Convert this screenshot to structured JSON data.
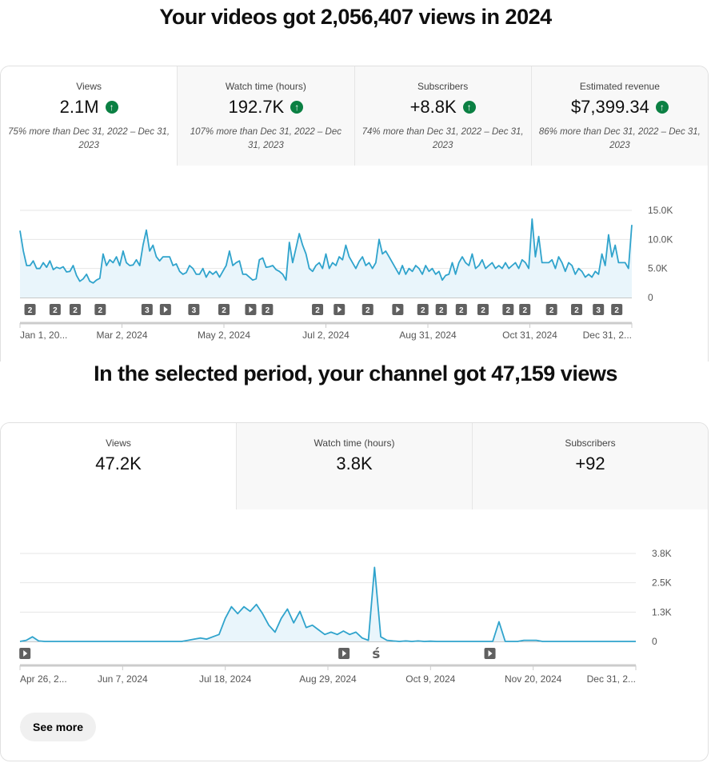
{
  "section1": {
    "title": "Your videos got 2,056,407 views in 2024",
    "tabs": [
      {
        "label": "Views",
        "value": "2.1M",
        "compare": "75% more than Dec 31, 2022 – Dec 31, 2023"
      },
      {
        "label": "Watch time (hours)",
        "value": "192.7K",
        "compare": "107% more than Dec 31, 2022 – Dec 31, 2023"
      },
      {
        "label": "Subscribers",
        "value": "+8.8K",
        "compare": "74% more than Dec 31, 2022 – Dec 31, 2023"
      },
      {
        "label": "Estimated revenue",
        "value": "$7,399.34",
        "compare": "86% more than Dec 31, 2022 – Dec 31, 2023"
      }
    ],
    "up_icon": "↑"
  },
  "section2": {
    "title": "In the selected period, your channel got 47,159 views",
    "tabs": [
      {
        "label": "Views",
        "value": "47.2K"
      },
      {
        "label": "Watch time (hours)",
        "value": "3.8K"
      },
      {
        "label": "Subscribers",
        "value": "+92"
      }
    ],
    "see_more": "See more"
  },
  "chart_data": [
    {
      "type": "area",
      "title": "Views",
      "ylabels": [
        "15.0K",
        "10.0K",
        "5.0K",
        "0"
      ],
      "ylim": [
        0,
        15000
      ],
      "xlabels": [
        "Jan 1, 20...",
        "Mar 2, 2024",
        "May 2, 2024",
        "Jul 2, 2024",
        "Aug 31, 2024",
        "Oct 31, 2024",
        "Dec 31, 2..."
      ],
      "values_k": [
        11.5,
        8,
        5.5,
        5.5,
        6.3,
        5,
        5,
        6,
        5.2,
        6.3,
        4.8,
        5.2,
        5,
        5.3,
        4.4,
        4.5,
        5.5,
        3.8,
        2.8,
        3.2,
        4,
        2.8,
        2.5,
        3,
        3.3,
        7.5,
        5.5,
        6.5,
        6,
        7,
        5.5,
        8,
        6,
        5.5,
        5.6,
        6.5,
        5.5,
        9,
        11.6,
        8,
        9,
        7,
        6.3,
        7,
        7,
        7,
        5.5,
        5.8,
        4.5,
        4,
        4.3,
        5.5,
        5,
        4,
        4,
        5,
        3.5,
        4.5,
        4,
        4.5,
        3.5,
        4.5,
        5.5,
        8,
        5.5,
        6,
        6.3,
        4,
        4,
        3.5,
        3,
        3.2,
        6.5,
        6.8,
        5.2,
        5.3,
        5.5,
        4.8,
        4.5,
        4,
        3,
        9.5,
        6,
        8.5,
        11,
        9,
        7.5,
        5,
        4.5,
        5.5,
        6,
        5,
        7.5,
        5,
        6,
        5.5,
        7,
        6.5,
        9,
        7,
        6,
        5,
        6.2,
        7,
        5.5,
        6,
        5,
        6,
        10,
        7.5,
        8,
        7,
        6,
        5,
        4,
        5.5,
        4,
        5,
        4.5,
        5.5,
        5,
        4,
        5.5,
        4.5,
        5,
        4,
        4.5,
        3,
        3.8,
        4,
        6,
        4,
        6,
        7,
        6,
        5.5,
        7.5,
        5,
        5.5,
        6.5,
        5,
        5.5,
        6,
        5,
        5.5,
        5,
        6,
        5,
        5.5,
        6,
        5,
        6.5,
        6,
        5,
        13.5,
        7,
        10.5,
        6,
        6,
        6,
        6.5,
        5,
        7,
        6,
        4.5,
        6,
        5.5,
        4,
        5,
        4.5,
        3.5,
        4,
        3.5,
        4.5,
        4,
        7.5,
        5.5,
        10.8,
        7,
        9,
        6,
        6,
        6,
        5,
        12.5
      ],
      "markers": [
        {
          "day": 6,
          "label": "2"
        },
        {
          "day": 21,
          "label": "2"
        },
        {
          "day": 33,
          "label": "2"
        },
        {
          "day": 48,
          "label": "2"
        },
        {
          "day": 76,
          "label": "3"
        },
        {
          "day": 87,
          "label": "play"
        },
        {
          "day": 104,
          "label": "3"
        },
        {
          "day": 122,
          "label": "2"
        },
        {
          "day": 138,
          "label": "play"
        },
        {
          "day": 148,
          "label": "2"
        },
        {
          "day": 178,
          "label": "2"
        },
        {
          "day": 191,
          "label": "play"
        },
        {
          "day": 208,
          "label": "2"
        },
        {
          "day": 226,
          "label": "play"
        },
        {
          "day": 241,
          "label": "2"
        },
        {
          "day": 252,
          "label": "2"
        },
        {
          "day": 264,
          "label": "2"
        },
        {
          "day": 277,
          "label": "2"
        },
        {
          "day": 292,
          "label": "2"
        },
        {
          "day": 302,
          "label": "2"
        },
        {
          "day": 318,
          "label": "2"
        },
        {
          "day": 333,
          "label": "2"
        },
        {
          "day": 346,
          "label": "3"
        },
        {
          "day": 357,
          "label": "2"
        }
      ],
      "days": 366
    },
    {
      "type": "area",
      "title": "Views",
      "ylabels": [
        "3.8K",
        "2.5K",
        "1.3K",
        "0"
      ],
      "ylim": [
        0,
        3800
      ],
      "xlabels": [
        "Apr 26, 2...",
        "Jun 7, 2024",
        "Jul 18, 2024",
        "Aug 29, 2024",
        "Oct 9, 2024",
        "Nov 20, 2024",
        "Dec 31, 2..."
      ],
      "values_k": [
        0,
        0.05,
        0.2,
        0.02,
        0,
        0,
        0,
        0,
        0,
        0,
        0,
        0,
        0,
        0,
        0,
        0,
        0,
        0,
        0,
        0,
        0,
        0,
        0,
        0,
        0,
        0,
        0,
        0.05,
        0.1,
        0.15,
        0.1,
        0.2,
        0.3,
        1,
        1.5,
        1.2,
        1.5,
        1.3,
        1.6,
        1.2,
        0.7,
        0.4,
        1,
        1.4,
        0.8,
        1.3,
        0.6,
        0.7,
        0.5,
        0.3,
        0.4,
        0.3,
        0.45,
        0.3,
        0.4,
        0.15,
        0.05,
        3.2,
        0.2,
        0.05,
        0.02,
        0,
        0.02,
        0,
        0.02,
        0,
        0.01,
        0,
        0,
        0,
        0,
        0,
        0,
        0,
        0,
        0,
        0,
        0.85,
        0,
        0,
        0,
        0.05,
        0.05,
        0.05,
        0,
        0,
        0,
        0,
        0,
        0,
        0,
        0,
        0,
        0,
        0,
        0,
        0,
        0,
        0,
        0
      ],
      "markers": [
        {
          "day": 2,
          "label": "play"
        },
        {
          "day": 131,
          "label": "play"
        },
        {
          "day": 144,
          "label": "shorts"
        },
        {
          "day": 190,
          "label": "play"
        }
      ],
      "days": 249
    }
  ],
  "colors": {
    "line": "#2fa3cc",
    "fill": "#e9f5fb",
    "up": "#0b8043",
    "marker": "#606060"
  }
}
